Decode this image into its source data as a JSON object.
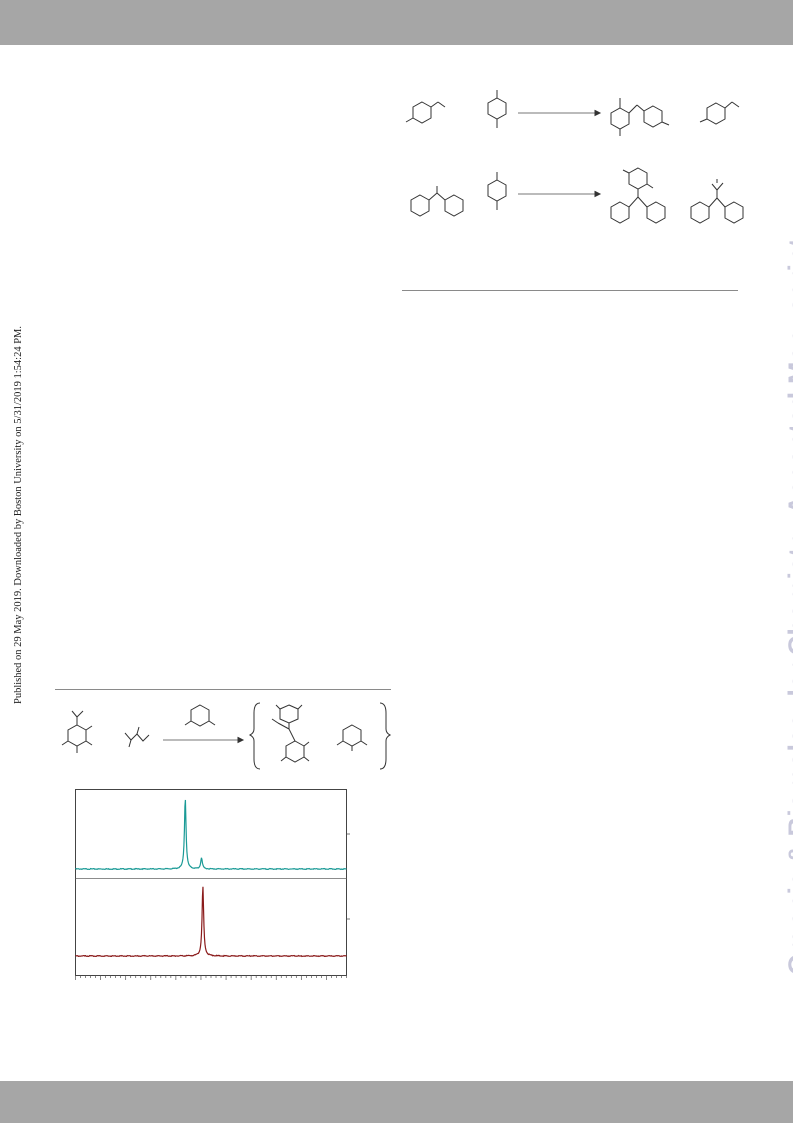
{
  "journal_watermark": "Organic & Biomolecular Chemistry Accepted Manuscript",
  "side_note": "Published on 29 May 2019. Downloaded by Boston University on 5/31/2019 1:54:24 PM.",
  "colors": {
    "header_bar": "#a6a6a6",
    "footer_bar": "#a6a6a6",
    "watermark": "#c9c9dc",
    "spectrum_top": "#1a9a96",
    "spectrum_bottom": "#8a1a1a"
  },
  "schemes": [
    {
      "row": 1,
      "reactants": [
        "4-ethyltoluene-like arene",
        "p-xylene"
      ],
      "products": [
        "diarylmethane",
        "arene"
      ]
    },
    {
      "row": 2,
      "reactants": [
        "diphenylmethane",
        "p-xylene"
      ],
      "products": [
        "triarylmethane",
        "isopropyl diarylmethane"
      ]
    },
    {
      "row": 3,
      "reactants": [
        "aryl boron species",
        "pinacol-type diol"
      ],
      "reagent": "2,6-lutidine",
      "products": [
        "aryl boronate ester",
        "lutidinium salt"
      ]
    }
  ],
  "chart_data": {
    "type": "line",
    "title": "",
    "xlabel": "",
    "ylabel": "",
    "series": [
      {
        "peaks": [
          {
            "position": 0.405,
            "height": 1.0
          },
          {
            "position": 0.465,
            "height": 0.16
          }
        ]
      },
      {
        "peaks": [
          {
            "position": 0.47,
            "height": 1.0
          }
        ]
      }
    ],
    "grid": false
  }
}
